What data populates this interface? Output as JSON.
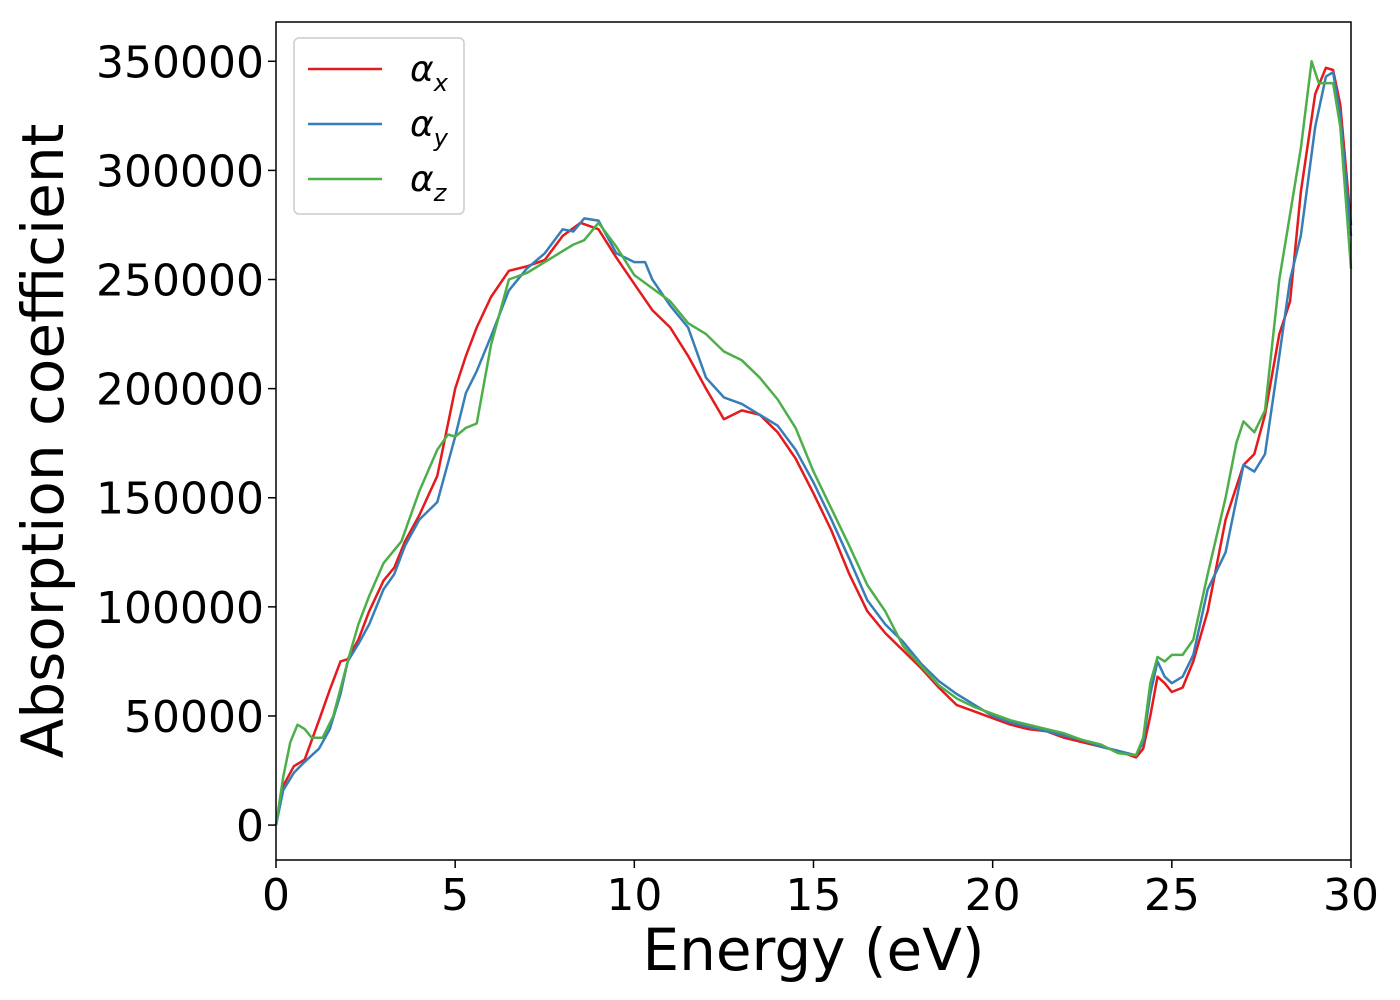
{
  "chart_data": {
    "type": "line",
    "title": "",
    "xlabel": "Energy (eV)",
    "ylabel": "Absorption coefficient",
    "xlim": [
      0,
      30
    ],
    "ylim": [
      -16000,
      368000
    ],
    "xticks": [
      0,
      5,
      10,
      15,
      20,
      25,
      30
    ],
    "yticks": [
      0,
      50000,
      100000,
      150000,
      200000,
      250000,
      300000,
      350000
    ],
    "xtick_labels": [
      "0",
      "5",
      "10",
      "15",
      "20",
      "25",
      "30"
    ],
    "ytick_labels": [
      "0",
      "50000",
      "100000",
      "150000",
      "200000",
      "250000",
      "300000",
      "350000"
    ],
    "grid": false,
    "legend_position": "top-left",
    "series": [
      {
        "name": "αx",
        "legend_base": "α",
        "legend_sub": "x",
        "color": "#e41a1c",
        "x": [
          0,
          0.2,
          0.5,
          0.8,
          1.2,
          1.5,
          1.8,
          2.0,
          2.3,
          2.6,
          3.0,
          3.3,
          3.6,
          4.0,
          4.5,
          5.0,
          5.3,
          5.6,
          6.0,
          6.5,
          7.0,
          7.5,
          8.0,
          8.5,
          9.0,
          9.5,
          10.0,
          10.5,
          11.0,
          11.5,
          12.0,
          12.5,
          13.0,
          13.5,
          14.0,
          14.5,
          15.0,
          15.5,
          16.0,
          16.5,
          17.0,
          17.5,
          18.0,
          18.5,
          19.0,
          19.5,
          20.0,
          20.5,
          21.0,
          21.5,
          22.0,
          22.5,
          23.0,
          23.5,
          24.0,
          24.2,
          24.4,
          24.6,
          24.8,
          25.0,
          25.3,
          25.6,
          26.0,
          26.5,
          27.0,
          27.3,
          27.6,
          28.0,
          28.3,
          28.6,
          29.0,
          29.3,
          29.5,
          29.7,
          30.0
        ],
        "values": [
          0,
          18000,
          27000,
          30000,
          48000,
          62000,
          75000,
          76000,
          85000,
          98000,
          112000,
          118000,
          130000,
          142000,
          160000,
          200000,
          215000,
          228000,
          242000,
          254000,
          256000,
          259000,
          270000,
          276000,
          273000,
          260000,
          248000,
          236000,
          228000,
          215000,
          200000,
          186000,
          190000,
          188000,
          180000,
          168000,
          152000,
          135000,
          115000,
          98000,
          88000,
          80000,
          72000,
          63000,
          55000,
          52000,
          49000,
          46000,
          44000,
          43000,
          40000,
          38000,
          36000,
          34000,
          31000,
          35000,
          50000,
          68000,
          65000,
          61000,
          63000,
          75000,
          98000,
          140000,
          165000,
          170000,
          188000,
          225000,
          240000,
          290000,
          335000,
          347000,
          346000,
          330000,
          275000
        ]
      },
      {
        "name": "αy",
        "legend_base": "α",
        "legend_sub": "y",
        "color": "#377eb8",
        "x": [
          0,
          0.2,
          0.5,
          0.8,
          1.2,
          1.5,
          1.8,
          2.0,
          2.3,
          2.6,
          3.0,
          3.3,
          3.6,
          4.0,
          4.5,
          5.0,
          5.3,
          5.6,
          6.0,
          6.5,
          7.0,
          7.5,
          8.0,
          8.3,
          8.6,
          9.0,
          9.5,
          10.0,
          10.3,
          10.5,
          11.0,
          11.5,
          12.0,
          12.5,
          13.0,
          13.5,
          14.0,
          14.5,
          15.0,
          15.5,
          16.0,
          16.5,
          17.0,
          17.5,
          18.0,
          18.5,
          19.0,
          19.5,
          20.0,
          20.5,
          21.0,
          21.5,
          22.0,
          22.5,
          23.0,
          23.5,
          24.0,
          24.2,
          24.4,
          24.6,
          24.8,
          25.0,
          25.3,
          25.6,
          26.0,
          26.5,
          27.0,
          27.3,
          27.6,
          28.0,
          28.3,
          28.6,
          29.0,
          29.3,
          29.5,
          29.7,
          30.0
        ],
        "values": [
          0,
          16000,
          24000,
          29000,
          35000,
          44000,
          60000,
          75000,
          83000,
          92000,
          108000,
          115000,
          128000,
          140000,
          148000,
          178000,
          198000,
          208000,
          224000,
          245000,
          255000,
          262000,
          273000,
          272000,
          278000,
          277000,
          262000,
          258000,
          258000,
          250000,
          238000,
          228000,
          205000,
          196000,
          193000,
          188000,
          183000,
          172000,
          157000,
          140000,
          122000,
          103000,
          92000,
          84000,
          74000,
          66000,
          60000,
          55000,
          50000,
          47000,
          45000,
          43000,
          41000,
          39000,
          36000,
          34000,
          32000,
          38000,
          60000,
          75000,
          68000,
          65000,
          68000,
          78000,
          108000,
          125000,
          165000,
          162000,
          170000,
          215000,
          250000,
          270000,
          320000,
          343000,
          345000,
          325000,
          270000
        ]
      },
      {
        "name": "αz",
        "legend_base": "α",
        "legend_sub": "z",
        "color": "#4daf4a",
        "x": [
          0,
          0.2,
          0.4,
          0.6,
          0.8,
          1.0,
          1.3,
          1.6,
          2.0,
          2.3,
          2.6,
          3.0,
          3.5,
          4.0,
          4.5,
          4.8,
          5.0,
          5.3,
          5.6,
          6.0,
          6.5,
          7.0,
          7.5,
          8.0,
          8.3,
          8.6,
          9.0,
          9.5,
          10.0,
          10.5,
          11.0,
          11.5,
          12.0,
          12.5,
          13.0,
          13.5,
          14.0,
          14.5,
          15.0,
          15.5,
          16.0,
          16.5,
          17.0,
          17.5,
          18.0,
          18.5,
          19.0,
          19.5,
          20.0,
          20.5,
          21.0,
          21.5,
          22.0,
          22.5,
          23.0,
          23.5,
          24.0,
          24.2,
          24.4,
          24.6,
          24.8,
          25.0,
          25.3,
          25.6,
          26.0,
          26.5,
          26.8,
          27.0,
          27.3,
          27.6,
          28.0,
          28.3,
          28.6,
          28.9,
          29.1,
          29.3,
          29.5,
          29.7,
          30.0
        ],
        "values": [
          0,
          22000,
          38000,
          46000,
          44000,
          40000,
          40000,
          50000,
          75000,
          92000,
          105000,
          120000,
          130000,
          153000,
          172000,
          179000,
          178000,
          182000,
          184000,
          220000,
          250000,
          253000,
          258000,
          263000,
          266000,
          268000,
          276000,
          265000,
          252000,
          246000,
          240000,
          230000,
          225000,
          217000,
          213000,
          205000,
          195000,
          182000,
          162000,
          145000,
          128000,
          110000,
          98000,
          82000,
          73000,
          64000,
          58000,
          54000,
          51000,
          48000,
          46000,
          44000,
          42000,
          39000,
          37000,
          33000,
          32000,
          40000,
          65000,
          77000,
          75000,
          78000,
          78000,
          85000,
          115000,
          150000,
          175000,
          185000,
          180000,
          190000,
          250000,
          280000,
          310000,
          350000,
          340000,
          340000,
          340000,
          320000,
          255000
        ]
      }
    ]
  }
}
